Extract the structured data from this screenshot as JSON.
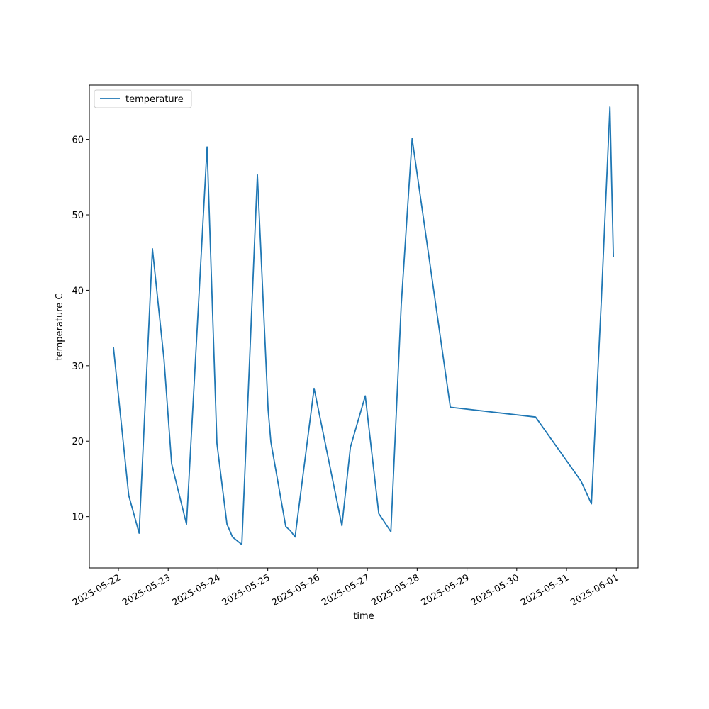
{
  "chart_data": {
    "type": "line",
    "xlabel": "time",
    "ylabel": "temperature C",
    "legend": "upper left",
    "x": [
      "2025-05-21 21:36",
      "2025-05-22 05:00",
      "2025-05-22 10:00",
      "2025-05-22 16:25",
      "2025-05-22 22:00",
      "2025-05-23 01:40",
      "2025-05-23 08:50",
      "2025-05-23 18:45",
      "2025-05-23 23:30",
      "2025-05-24 04:20",
      "2025-05-24 07:00",
      "2025-05-24 11:30",
      "2025-05-24 19:00",
      "2025-05-25 00:10",
      "2025-05-25 01:30",
      "2025-05-25 08:40",
      "2025-05-25 11:00",
      "2025-05-25 13:10",
      "2025-05-25 22:20",
      "2025-05-26 11:45",
      "2025-05-26 15:50",
      "2025-05-26 23:00",
      "2025-05-27 05:30",
      "2025-05-27 11:20",
      "2025-05-27 16:20",
      "2025-05-27 21:35",
      "2025-05-28 16:00",
      "2025-05-30 09:05",
      "2025-05-31 07:00",
      "2025-05-31 12:00",
      "2025-05-31 16:50",
      "2025-05-31 20:55",
      "2025-05-31 22:35"
    ],
    "series": [
      {
        "name": "temperature",
        "color": "#1f77b4",
        "values": [
          32.5,
          12.8,
          7.8,
          45.5,
          30.8,
          17.0,
          9.0,
          59.0,
          19.7,
          9.0,
          7.3,
          6.3,
          55.3,
          24.2,
          19.9,
          8.7,
          8.1,
          7.3,
          27.0,
          8.8,
          19.2,
          26.0,
          10.4,
          8.0,
          38.1,
          60.1,
          24.5,
          23.2,
          14.7,
          11.7,
          39.0,
          64.3,
          44.4
        ]
      }
    ],
    "xlim": [
      "2025-05-21 10:00",
      "2025-06-01 10:30"
    ],
    "xticks": [
      "2025-05-22",
      "2025-05-23",
      "2025-05-24",
      "2025-05-25",
      "2025-05-26",
      "2025-05-27",
      "2025-05-28",
      "2025-05-29",
      "2025-05-30",
      "2025-05-31",
      "2025-06-01"
    ],
    "ylim": [
      3.2,
      67.2
    ],
    "yticks": [
      10,
      20,
      30,
      40,
      50,
      60
    ]
  }
}
